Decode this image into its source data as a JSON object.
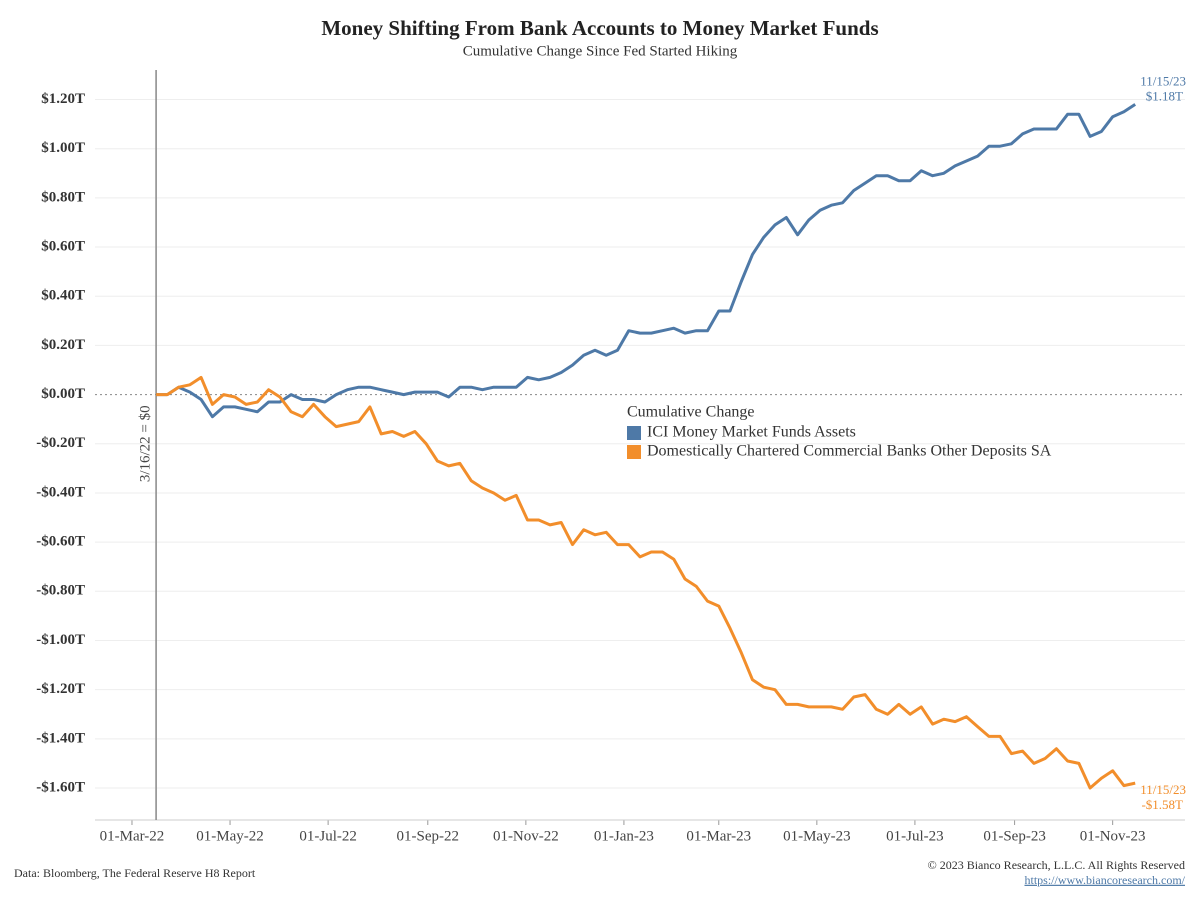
{
  "chart_data": {
    "type": "line",
    "title": "Money Shifting From Bank Accounts to Money Market Funds",
    "subtitle": "Cumulative Change Since Fed Started Hiking",
    "legend_title": "Cumulative Change",
    "legend": "center",
    "grid": true,
    "x": [
      "2022-03-16",
      "2022-03-23",
      "2022-03-30",
      "2022-04-06",
      "2022-04-13",
      "2022-04-20",
      "2022-04-27",
      "2022-05-04",
      "2022-05-11",
      "2022-05-18",
      "2022-05-25",
      "2022-06-01",
      "2022-06-08",
      "2022-06-15",
      "2022-06-22",
      "2022-06-29",
      "2022-07-06",
      "2022-07-13",
      "2022-07-20",
      "2022-07-27",
      "2022-08-03",
      "2022-08-10",
      "2022-08-17",
      "2022-08-24",
      "2022-08-31",
      "2022-09-07",
      "2022-09-14",
      "2022-09-21",
      "2022-09-28",
      "2022-10-05",
      "2022-10-12",
      "2022-10-19",
      "2022-10-26",
      "2022-11-02",
      "2022-11-09",
      "2022-11-16",
      "2022-11-23",
      "2022-11-30",
      "2022-12-07",
      "2022-12-14",
      "2022-12-21",
      "2022-12-28",
      "2023-01-04",
      "2023-01-11",
      "2023-01-18",
      "2023-01-25",
      "2023-02-01",
      "2023-02-08",
      "2023-02-15",
      "2023-02-22",
      "2023-03-01",
      "2023-03-08",
      "2023-03-15",
      "2023-03-22",
      "2023-03-29",
      "2023-04-05",
      "2023-04-12",
      "2023-04-19",
      "2023-04-26",
      "2023-05-03",
      "2023-05-10",
      "2023-05-17",
      "2023-05-24",
      "2023-05-31",
      "2023-06-07",
      "2023-06-14",
      "2023-06-21",
      "2023-06-28",
      "2023-07-05",
      "2023-07-12",
      "2023-07-19",
      "2023-07-26",
      "2023-08-02",
      "2023-08-09",
      "2023-08-16",
      "2023-08-23",
      "2023-08-30",
      "2023-09-06",
      "2023-09-13",
      "2023-09-20",
      "2023-09-27",
      "2023-10-04",
      "2023-10-11",
      "2023-10-18",
      "2023-10-25",
      "2023-11-01",
      "2023-11-08",
      "2023-11-15"
    ],
    "series": [
      {
        "name": "ICI Money Market Funds Assets",
        "color": "#4e79a7",
        "values": [
          0,
          0,
          0.03,
          0.01,
          -0.02,
          -0.09,
          -0.05,
          -0.05,
          -0.06,
          -0.07,
          -0.03,
          -0.03,
          0.0,
          -0.02,
          -0.02,
          -0.03,
          0.0,
          0.02,
          0.03,
          0.03,
          0.02,
          0.01,
          0.0,
          0.01,
          0.01,
          0.01,
          -0.01,
          0.03,
          0.03,
          0.02,
          0.03,
          0.03,
          0.03,
          0.07,
          0.06,
          0.07,
          0.09,
          0.12,
          0.16,
          0.18,
          0.16,
          0.18,
          0.26,
          0.25,
          0.25,
          0.26,
          0.27,
          0.25,
          0.26,
          0.26,
          0.34,
          0.34,
          0.46,
          0.57,
          0.64,
          0.69,
          0.72,
          0.65,
          0.71,
          0.75,
          0.77,
          0.78,
          0.83,
          0.86,
          0.89,
          0.89,
          0.87,
          0.87,
          0.91,
          0.89,
          0.9,
          0.93,
          0.95,
          0.97,
          1.01,
          1.01,
          1.02,
          1.06,
          1.08,
          1.08,
          1.08,
          1.14,
          1.14,
          1.05,
          1.07,
          1.13,
          1.15,
          1.18
        ],
        "end_label": {
          "date": "11/15/23",
          "value": "$1.18T"
        }
      },
      {
        "name": "Domestically Chartered Commercial Banks Other Deposits SA",
        "color": "#f28e2b",
        "values": [
          0,
          0,
          0.03,
          0.04,
          0.07,
          -0.04,
          0,
          -0.01,
          -0.04,
          -0.03,
          0.02,
          -0.01,
          -0.07,
          -0.09,
          -0.04,
          -0.09,
          -0.13,
          -0.12,
          -0.11,
          -0.05,
          -0.16,
          -0.15,
          -0.17,
          -0.15,
          -0.2,
          -0.27,
          -0.29,
          -0.28,
          -0.35,
          -0.38,
          -0.4,
          -0.43,
          -0.41,
          -0.51,
          -0.51,
          -0.53,
          -0.52,
          -0.61,
          -0.55,
          -0.57,
          -0.56,
          -0.61,
          -0.61,
          -0.66,
          -0.64,
          -0.64,
          -0.67,
          -0.75,
          -0.78,
          -0.84,
          -0.86,
          -0.95,
          -1.05,
          -1.16,
          -1.19,
          -1.2,
          -1.26,
          -1.26,
          -1.27,
          -1.27,
          -1.27,
          -1.28,
          -1.23,
          -1.22,
          -1.28,
          -1.3,
          -1.26,
          -1.3,
          -1.27,
          -1.34,
          -1.32,
          -1.33,
          -1.31,
          -1.35,
          -1.39,
          -1.39,
          -1.46,
          -1.45,
          -1.5,
          -1.48,
          -1.44,
          -1.49,
          -1.5,
          -1.6,
          -1.56,
          -1.53,
          -1.59,
          -1.58
        ],
        "end_label": {
          "date": "11/15/23",
          "value": "-$1.58T"
        }
      }
    ],
    "xlim": [
      "2022-02-06",
      "2023-12-16"
    ],
    "xticks": [
      {
        "value": "2022-03-01",
        "label": "01-Mar-22"
      },
      {
        "value": "2022-05-01",
        "label": "01-May-22"
      },
      {
        "value": "2022-07-01",
        "label": "01-Jul-22"
      },
      {
        "value": "2022-09-01",
        "label": "01-Sep-22"
      },
      {
        "value": "2022-11-01",
        "label": "01-Nov-22"
      },
      {
        "value": "2023-01-01",
        "label": "01-Jan-23"
      },
      {
        "value": "2023-03-01",
        "label": "01-Mar-23"
      },
      {
        "value": "2023-05-01",
        "label": "01-May-23"
      },
      {
        "value": "2023-07-01",
        "label": "01-Jul-23"
      },
      {
        "value": "2023-09-01",
        "label": "01-Sep-23"
      },
      {
        "value": "2023-11-01",
        "label": "01-Nov-23"
      }
    ],
    "ylim": [
      -1.73,
      1.32
    ],
    "yticks": [
      {
        "value": 1.2,
        "label": "$1.20T"
      },
      {
        "value": 1.0,
        "label": "$1.00T"
      },
      {
        "value": 0.8,
        "label": "$0.80T"
      },
      {
        "value": 0.6,
        "label": "$0.60T"
      },
      {
        "value": 0.4,
        "label": "$0.40T"
      },
      {
        "value": 0.2,
        "label": "$0.20T"
      },
      {
        "value": 0,
        "label": "$0.00T"
      },
      {
        "value": -0.2,
        "label": "-$0.20T"
      },
      {
        "value": -0.4,
        "label": "-$0.40T"
      },
      {
        "value": -0.6,
        "label": "-$0.60T"
      },
      {
        "value": -0.8,
        "label": "-$0.80T"
      },
      {
        "value": -1.0,
        "label": "-$1.00T"
      },
      {
        "value": -1.2,
        "label": "-$1.20T"
      },
      {
        "value": -1.4,
        "label": "-$1.40T"
      },
      {
        "value": -1.6,
        "label": "-$1.60T"
      }
    ],
    "start_marker": {
      "x": "2022-03-16",
      "text": "3/16/22 = $0"
    },
    "source": "Data: Bloomberg, The Federal Reserve H8 Report",
    "copyright": "© 2023 Bianco Research, L.L.C. All Rights Reserved",
    "url": "https://www.biancoresearch.com/"
  }
}
